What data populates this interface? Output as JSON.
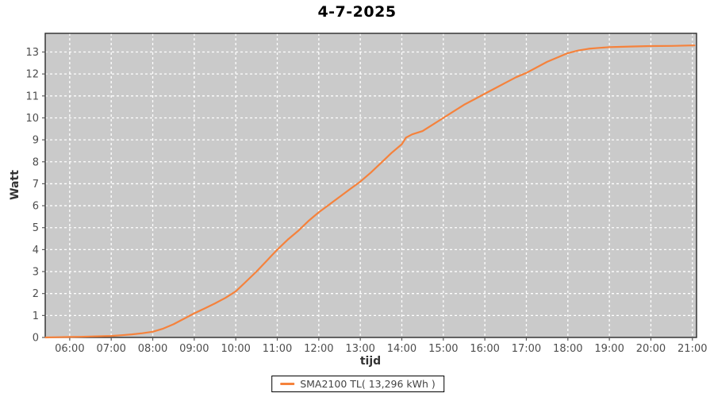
{
  "title": "4-7-2025",
  "colors": {
    "plot_background": "#cacaca",
    "grid": "#ffffff",
    "series": "#f5823c",
    "tick_label": "#4d4d4d",
    "axis_title": "#333333",
    "plot_border": "#2b2b2b",
    "tick_mark": "#5a5a5a"
  },
  "legend": {
    "label": "SMA2100 TL( 13,296 kWh )"
  },
  "chart_data": {
    "type": "line",
    "title": "4-7-2025",
    "xlabel": "tijd",
    "ylabel": "Watt",
    "grid": true,
    "legend_position": "bottom-center",
    "x_tick_labels": [
      "06:00",
      "07:00",
      "08:00",
      "09:00",
      "10:00",
      "11:00",
      "12:00",
      "13:00",
      "14:00",
      "15:00",
      "16:00",
      "17:00",
      "18:00",
      "19:00",
      "20:00",
      "21:00"
    ],
    "x_tick_hours": [
      6,
      7,
      8,
      9,
      10,
      11,
      12,
      13,
      14,
      15,
      16,
      17,
      18,
      19,
      20,
      21
    ],
    "y_ticks": [
      0,
      1,
      2,
      3,
      4,
      5,
      6,
      7,
      8,
      9,
      10,
      11,
      12,
      13
    ],
    "xlim_hours": [
      5.41,
      21.1
    ],
    "ylim": [
      0,
      13.85
    ],
    "series": [
      {
        "name": "SMA2100 TL( 13,296 kWh )",
        "color": "#f5823c",
        "total_kwh_label": "13,296 kWh",
        "points": [
          [
            5.42,
            0.0
          ],
          [
            5.7,
            0.01
          ],
          [
            6.0,
            0.02
          ],
          [
            6.25,
            0.03
          ],
          [
            6.5,
            0.045
          ],
          [
            6.75,
            0.055
          ],
          [
            7.0,
            0.07
          ],
          [
            7.25,
            0.1
          ],
          [
            7.5,
            0.14
          ],
          [
            7.75,
            0.19
          ],
          [
            8.0,
            0.26
          ],
          [
            8.25,
            0.4
          ],
          [
            8.5,
            0.6
          ],
          [
            8.75,
            0.85
          ],
          [
            9.0,
            1.1
          ],
          [
            9.25,
            1.32
          ],
          [
            9.5,
            1.55
          ],
          [
            9.75,
            1.8
          ],
          [
            10.0,
            2.1
          ],
          [
            10.25,
            2.55
          ],
          [
            10.5,
            3.0
          ],
          [
            10.75,
            3.5
          ],
          [
            11.0,
            4.0
          ],
          [
            11.25,
            4.45
          ],
          [
            11.5,
            4.85
          ],
          [
            11.75,
            5.3
          ],
          [
            12.0,
            5.7
          ],
          [
            12.25,
            6.05
          ],
          [
            12.5,
            6.4
          ],
          [
            12.75,
            6.75
          ],
          [
            13.0,
            7.1
          ],
          [
            13.25,
            7.5
          ],
          [
            13.5,
            7.95
          ],
          [
            13.75,
            8.4
          ],
          [
            14.0,
            8.8
          ],
          [
            14.1,
            9.1
          ],
          [
            14.25,
            9.25
          ],
          [
            14.5,
            9.4
          ],
          [
            14.75,
            9.7
          ],
          [
            15.0,
            10.0
          ],
          [
            15.25,
            10.3
          ],
          [
            15.5,
            10.6
          ],
          [
            15.75,
            10.85
          ],
          [
            16.0,
            11.1
          ],
          [
            16.25,
            11.35
          ],
          [
            16.5,
            11.6
          ],
          [
            16.75,
            11.85
          ],
          [
            17.0,
            12.05
          ],
          [
            17.25,
            12.3
          ],
          [
            17.5,
            12.55
          ],
          [
            17.75,
            12.75
          ],
          [
            18.0,
            12.95
          ],
          [
            18.25,
            13.07
          ],
          [
            18.5,
            13.15
          ],
          [
            18.75,
            13.19
          ],
          [
            19.0,
            13.22
          ],
          [
            19.5,
            13.25
          ],
          [
            20.0,
            13.27
          ],
          [
            20.5,
            13.28
          ],
          [
            21.0,
            13.3
          ],
          [
            21.05,
            13.3
          ]
        ]
      }
    ]
  }
}
